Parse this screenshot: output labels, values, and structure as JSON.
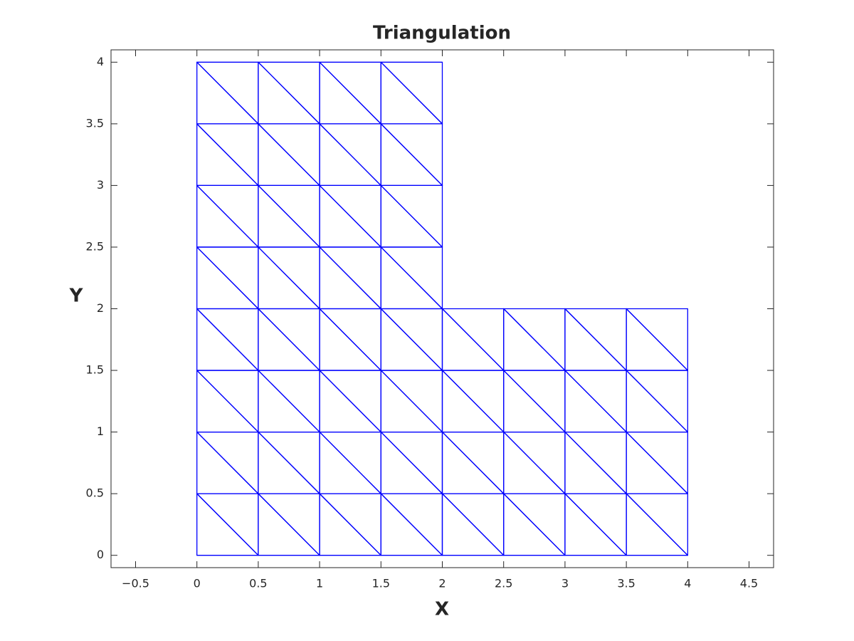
{
  "chart_data": {
    "type": "triangulation",
    "title": "Triangulation",
    "xlabel": "X",
    "ylabel": "Y",
    "color": "#0000ff",
    "box": true,
    "grid": false,
    "xlim": [
      -0.7,
      4.7
    ],
    "ylim": [
      -0.1,
      4.1
    ],
    "xticks": [
      {
        "value": -0.5,
        "label": "−0.5"
      },
      0,
      0.5,
      1,
      1.5,
      2,
      2.5,
      3,
      3.5,
      4,
      4.5
    ],
    "yticks": [
      0,
      0.5,
      1,
      1.5,
      2,
      2.5,
      3,
      3.5,
      4
    ],
    "x": [
      0,
      0.5,
      1,
      1.5,
      2,
      2.5,
      3,
      3.5,
      4,
      0,
      0.5,
      1,
      1.5,
      2,
      2.5,
      3,
      3.5,
      4,
      0,
      0.5,
      1,
      1.5,
      2,
      2.5,
      3,
      3.5,
      4,
      0,
      0.5,
      1,
      1.5,
      2,
      2.5,
      3,
      3.5,
      4,
      0,
      0.5,
      1,
      1.5,
      2,
      2.5,
      3,
      3.5,
      4,
      0,
      0.5,
      1,
      1.5,
      2,
      0,
      0.5,
      1,
      1.5,
      2,
      0,
      0.5,
      1,
      1.5,
      2,
      0,
      0.5,
      1,
      1.5,
      2
    ],
    "y": [
      0,
      0,
      0,
      0,
      0,
      0,
      0,
      0,
      0,
      0.5,
      0.5,
      0.5,
      0.5,
      0.5,
      0.5,
      0.5,
      0.5,
      0.5,
      1,
      1,
      1,
      1,
      1,
      1,
      1,
      1,
      1,
      1.5,
      1.5,
      1.5,
      1.5,
      1.5,
      1.5,
      1.5,
      1.5,
      1.5,
      2,
      2,
      2,
      2,
      2,
      2,
      2,
      2,
      2,
      2.5,
      2.5,
      2.5,
      2.5,
      2.5,
      3,
      3,
      3,
      3,
      3,
      3.5,
      3.5,
      3.5,
      3.5,
      3.5,
      4,
      4,
      4,
      4,
      4
    ],
    "triangles": [
      [
        0,
        1,
        9
      ],
      [
        1,
        10,
        9
      ],
      [
        1,
        2,
        10
      ],
      [
        2,
        11,
        10
      ],
      [
        2,
        3,
        11
      ],
      [
        3,
        12,
        11
      ],
      [
        3,
        4,
        12
      ],
      [
        4,
        13,
        12
      ],
      [
        4,
        5,
        13
      ],
      [
        5,
        14,
        13
      ],
      [
        5,
        6,
        14
      ],
      [
        6,
        15,
        14
      ],
      [
        6,
        7,
        15
      ],
      [
        7,
        16,
        15
      ],
      [
        7,
        8,
        16
      ],
      [
        8,
        17,
        16
      ],
      [
        9,
        10,
        18
      ],
      [
        10,
        19,
        18
      ],
      [
        10,
        11,
        19
      ],
      [
        11,
        20,
        19
      ],
      [
        11,
        12,
        20
      ],
      [
        12,
        21,
        20
      ],
      [
        12,
        13,
        21
      ],
      [
        13,
        22,
        21
      ],
      [
        13,
        14,
        22
      ],
      [
        14,
        23,
        22
      ],
      [
        14,
        15,
        23
      ],
      [
        15,
        24,
        23
      ],
      [
        15,
        16,
        24
      ],
      [
        16,
        25,
        24
      ],
      [
        16,
        17,
        25
      ],
      [
        17,
        26,
        25
      ],
      [
        18,
        19,
        27
      ],
      [
        19,
        28,
        27
      ],
      [
        19,
        20,
        28
      ],
      [
        20,
        29,
        28
      ],
      [
        20,
        21,
        29
      ],
      [
        21,
        30,
        29
      ],
      [
        21,
        22,
        30
      ],
      [
        22,
        31,
        30
      ],
      [
        22,
        23,
        31
      ],
      [
        23,
        32,
        31
      ],
      [
        23,
        24,
        32
      ],
      [
        24,
        33,
        32
      ],
      [
        24,
        25,
        33
      ],
      [
        25,
        34,
        33
      ],
      [
        25,
        26,
        34
      ],
      [
        26,
        35,
        34
      ],
      [
        27,
        28,
        36
      ],
      [
        28,
        37,
        36
      ],
      [
        28,
        29,
        37
      ],
      [
        29,
        38,
        37
      ],
      [
        29,
        30,
        38
      ],
      [
        30,
        39,
        38
      ],
      [
        30,
        31,
        39
      ],
      [
        31,
        40,
        39
      ],
      [
        31,
        32,
        40
      ],
      [
        32,
        41,
        40
      ],
      [
        32,
        33,
        41
      ],
      [
        33,
        42,
        41
      ],
      [
        33,
        34,
        42
      ],
      [
        34,
        43,
        42
      ],
      [
        34,
        35,
        43
      ],
      [
        35,
        44,
        43
      ],
      [
        36,
        37,
        45
      ],
      [
        37,
        46,
        45
      ],
      [
        37,
        38,
        46
      ],
      [
        38,
        47,
        46
      ],
      [
        38,
        39,
        47
      ],
      [
        39,
        48,
        47
      ],
      [
        39,
        40,
        48
      ],
      [
        40,
        49,
        48
      ],
      [
        45,
        46,
        50
      ],
      [
        46,
        51,
        50
      ],
      [
        46,
        47,
        51
      ],
      [
        47,
        52,
        51
      ],
      [
        47,
        48,
        52
      ],
      [
        48,
        53,
        52
      ],
      [
        48,
        49,
        53
      ],
      [
        49,
        54,
        53
      ],
      [
        50,
        51,
        55
      ],
      [
        51,
        56,
        55
      ],
      [
        51,
        52,
        56
      ],
      [
        52,
        57,
        56
      ],
      [
        52,
        53,
        57
      ],
      [
        53,
        58,
        57
      ],
      [
        53,
        54,
        58
      ],
      [
        54,
        59,
        58
      ],
      [
        55,
        56,
        60
      ],
      [
        56,
        61,
        60
      ],
      [
        56,
        57,
        61
      ],
      [
        57,
        62,
        61
      ],
      [
        57,
        58,
        62
      ],
      [
        58,
        63,
        62
      ],
      [
        58,
        59,
        63
      ],
      [
        59,
        64,
        63
      ]
    ]
  }
}
